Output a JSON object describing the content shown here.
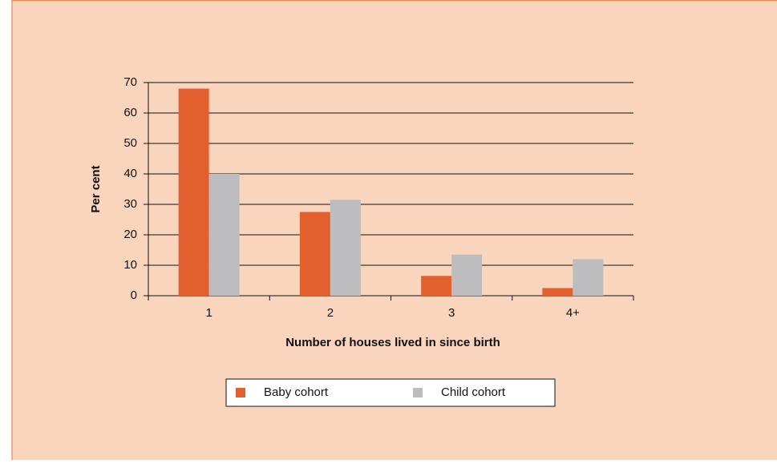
{
  "chart_data": {
    "type": "bar",
    "x_label": "Number of houses lived in since birth",
    "y_label": "Per cent",
    "categories": [
      "1",
      "2",
      "3",
      "4+"
    ],
    "series": [
      {
        "name": "Baby cohort",
        "color": "#e35f2e",
        "values": [
          68,
          27.5,
          6.5,
          2.5
        ]
      },
      {
        "name": "Child cohort",
        "color": "#bdbdc0",
        "values": [
          40,
          31.5,
          13.5,
          12
        ]
      }
    ],
    "ylim": [
      0,
      70
    ],
    "yticks": [
      0,
      10,
      20,
      30,
      40,
      50,
      60,
      70
    ],
    "grid": true,
    "legend": "bottom"
  }
}
